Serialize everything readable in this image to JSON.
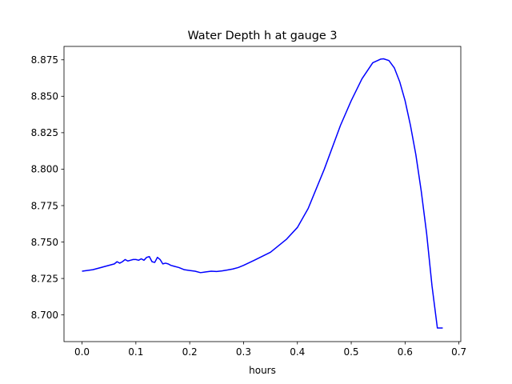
{
  "chart_data": {
    "type": "line",
    "title": "Water Depth h at gauge 3",
    "xlabel": "hours",
    "ylabel": "",
    "xlim": [
      -0.0335,
      0.7035
    ],
    "ylim": [
      8.6817,
      8.8842
    ],
    "xticks": [
      0.0,
      0.1,
      0.2,
      0.3,
      0.4,
      0.5,
      0.6,
      0.7
    ],
    "xtick_labels": [
      "0.0",
      "0.1",
      "0.2",
      "0.3",
      "0.4",
      "0.5",
      "0.6",
      "0.7"
    ],
    "yticks": [
      8.7,
      8.725,
      8.75,
      8.775,
      8.8,
      8.825,
      8.85,
      8.875
    ],
    "ytick_labels": [
      "8.700",
      "8.725",
      "8.750",
      "8.775",
      "8.800",
      "8.825",
      "8.850",
      "8.875"
    ],
    "grid": false,
    "series": [
      {
        "name": "",
        "color": "#0000ff",
        "x": [
          0.0,
          0.02,
          0.04,
          0.06,
          0.065,
          0.07,
          0.075,
          0.08,
          0.085,
          0.09,
          0.095,
          0.1,
          0.105,
          0.11,
          0.115,
          0.12,
          0.125,
          0.13,
          0.135,
          0.14,
          0.145,
          0.15,
          0.155,
          0.16,
          0.165,
          0.17,
          0.18,
          0.19,
          0.2,
          0.21,
          0.22,
          0.23,
          0.24,
          0.25,
          0.26,
          0.27,
          0.28,
          0.29,
          0.3,
          0.32,
          0.35,
          0.38,
          0.4,
          0.42,
          0.45,
          0.48,
          0.5,
          0.52,
          0.54,
          0.555,
          0.56,
          0.57,
          0.58,
          0.59,
          0.6,
          0.61,
          0.62,
          0.63,
          0.64,
          0.65,
          0.66,
          0.67
        ],
        "y": [
          8.73,
          8.731,
          8.733,
          8.735,
          8.7365,
          8.7355,
          8.7365,
          8.738,
          8.737,
          8.7375,
          8.738,
          8.738,
          8.7375,
          8.7385,
          8.7375,
          8.7395,
          8.74,
          8.7365,
          8.736,
          8.7395,
          8.738,
          8.735,
          8.7355,
          8.735,
          8.734,
          8.7335,
          8.7325,
          8.731,
          8.7305,
          8.73,
          8.729,
          8.7295,
          8.73,
          8.7298,
          8.7302,
          8.7308,
          8.7315,
          8.7325,
          8.734,
          8.7375,
          8.743,
          8.752,
          8.76,
          8.773,
          8.8,
          8.83,
          8.847,
          8.862,
          8.873,
          8.8755,
          8.8757,
          8.8745,
          8.8695,
          8.86,
          8.847,
          8.83,
          8.81,
          8.785,
          8.756,
          8.72,
          8.691,
          8.691
        ]
      }
    ]
  }
}
